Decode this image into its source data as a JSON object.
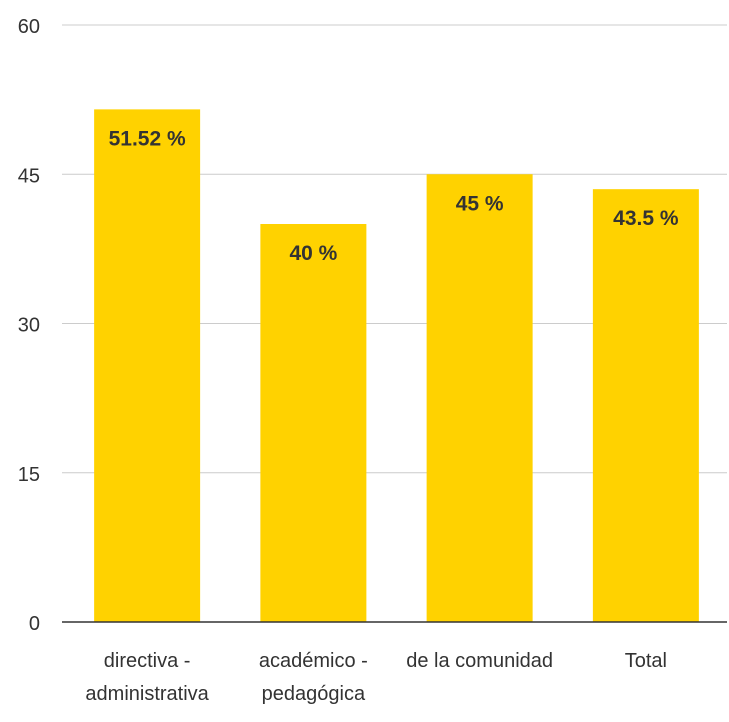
{
  "chart_data": {
    "type": "bar",
    "categories": [
      [
        "directiva -",
        "administrativa"
      ],
      [
        "académico -",
        "pedagógica"
      ],
      [
        "de la comunidad"
      ],
      [
        "Total"
      ]
    ],
    "values": [
      51.52,
      40,
      45,
      43.5
    ],
    "data_labels": [
      "51.52 %",
      "40 %",
      "45 %",
      "43.5 %"
    ],
    "y_ticks": [
      0,
      15,
      30,
      45,
      60
    ],
    "ylim": [
      0,
      60
    ],
    "grid": true,
    "legend": "none",
    "colors": {
      "bar": "#FFD200",
      "grid": "#cccccc",
      "axis": "#333333",
      "text": "#333333"
    }
  }
}
